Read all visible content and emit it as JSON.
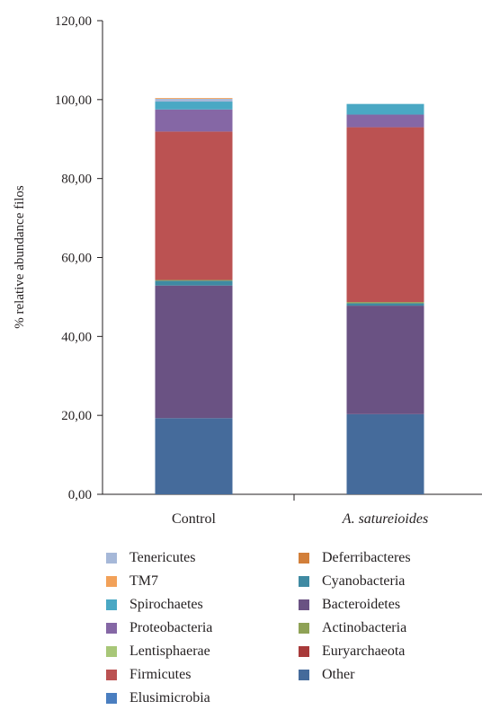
{
  "chart_data": {
    "type": "bar",
    "stacked": true,
    "title": "",
    "xlabel": "",
    "ylabel": "% relative abundance filos",
    "ylim": [
      0,
      120
    ],
    "yticks": [
      "0,00",
      "20,00",
      "40,00",
      "60,00",
      "80,00",
      "100,00",
      "120,00"
    ],
    "categories": [
      "Control",
      "A. satureioides"
    ],
    "category_italic": [
      false,
      true
    ],
    "grid": false,
    "legend_position": "bottom",
    "series": [
      {
        "name": "Other",
        "color": "#456b9b",
        "values": [
          19.3,
          20.3
        ]
      },
      {
        "name": "Bacteroidetes",
        "color": "#6a5283",
        "values": [
          33.6,
          27.5
        ]
      },
      {
        "name": "Cyanobacteria",
        "color": "#3f8aa2",
        "values": [
          1.2,
          0.6
        ]
      },
      {
        "name": "Actinobacteria",
        "color": "#8fa256",
        "values": [
          0.2,
          0.3
        ]
      },
      {
        "name": "Firmicutes",
        "color": "#bb5252",
        "values": [
          37.6,
          44.3
        ]
      },
      {
        "name": "Proteobacteria",
        "color": "#8567a5",
        "values": [
          5.6,
          3.2
        ]
      },
      {
        "name": "Spirochaetes",
        "color": "#4aa8c4",
        "values": [
          2.0,
          2.7
        ]
      },
      {
        "name": "Tenericutes",
        "color": "#a6b8d8",
        "values": [
          0.7,
          0.0
        ]
      },
      {
        "name": "TM7",
        "color": "#f2a159",
        "values": [
          0.2,
          0.0
        ]
      },
      {
        "name": "Deferribacteres",
        "color": "#d27f3a",
        "values": [
          0.0,
          0.0
        ]
      },
      {
        "name": "Lentisphaerae",
        "color": "#a8c778",
        "values": [
          0.0,
          0.0
        ]
      },
      {
        "name": "Euryarchaeota",
        "color": "#a83a3a",
        "values": [
          0.0,
          0.0
        ]
      },
      {
        "name": "Elusimicrobia",
        "color": "#4a7ec0",
        "values": [
          0.0,
          0.0
        ]
      }
    ]
  },
  "legend": [
    {
      "label": "Tenericutes",
      "color": "#a6b8d8"
    },
    {
      "label": "Deferribacteres",
      "color": "#d27f3a"
    },
    {
      "label": "TM7",
      "color": "#f2a159"
    },
    {
      "label": "Cyanobacteria",
      "color": "#3f8aa2"
    },
    {
      "label": "Spirochaetes",
      "color": "#4aa8c4"
    },
    {
      "label": "Bacteroidetes",
      "color": "#6a5283"
    },
    {
      "label": "Proteobacteria",
      "color": "#8567a5"
    },
    {
      "label": "Actinobacteria",
      "color": "#8fa256"
    },
    {
      "label": "Lentisphaerae",
      "color": "#a8c778"
    },
    {
      "label": "Euryarchaeota",
      "color": "#a83a3a"
    },
    {
      "label": "Firmicutes",
      "color": "#bb5252"
    },
    {
      "label": "Other",
      "color": "#456b9b"
    },
    {
      "label": "Elusimicrobia",
      "color": "#4a7ec0"
    }
  ]
}
